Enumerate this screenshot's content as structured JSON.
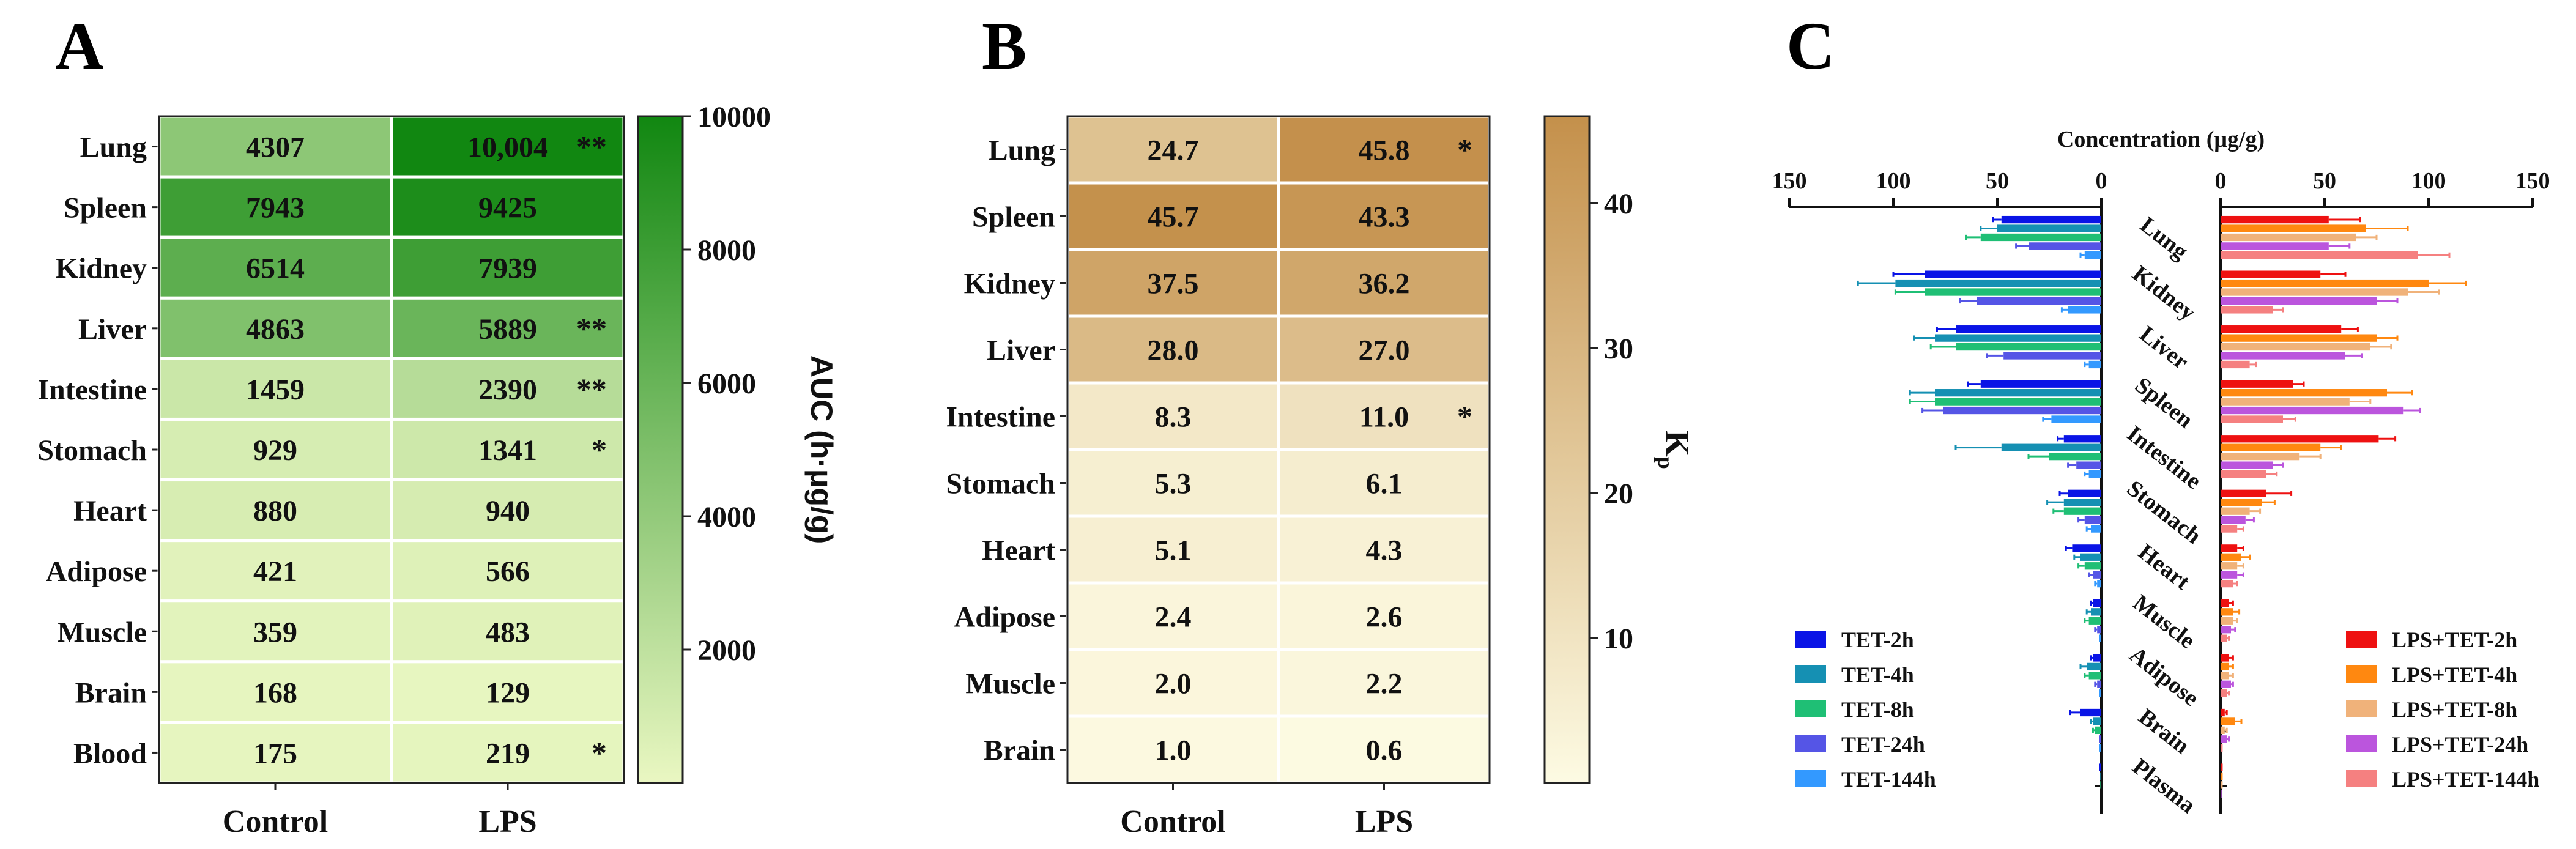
{
  "panels": {
    "a": "A",
    "b": "B",
    "c": "C"
  },
  "chart_data": [
    {
      "type": "heatmap",
      "panel": "A",
      "rows": [
        "Lung",
        "Spleen",
        "Kidney",
        "Liver",
        "Intestine",
        "Stomach",
        "Heart",
        "Adipose",
        "Muscle",
        "Brain",
        "Blood"
      ],
      "columns": [
        "Control",
        "LPS"
      ],
      "values": [
        [
          4307,
          10004
        ],
        [
          7943,
          9425
        ],
        [
          6514,
          7939
        ],
        [
          4863,
          5889
        ],
        [
          1459,
          2390
        ],
        [
          929,
          1341
        ],
        [
          880,
          940
        ],
        [
          421,
          566
        ],
        [
          359,
          483
        ],
        [
          168,
          129
        ],
        [
          175,
          219
        ]
      ],
      "labels": [
        [
          "4307",
          "10,004"
        ],
        [
          "7943",
          "9425"
        ],
        [
          "6514",
          "7939"
        ],
        [
          "4863",
          "5889"
        ],
        [
          "1459",
          "2390"
        ],
        [
          "929",
          "1341"
        ],
        [
          "880",
          "940"
        ],
        [
          "421",
          "566"
        ],
        [
          "359",
          "483"
        ],
        [
          "168",
          "129"
        ],
        [
          "175",
          "219"
        ]
      ],
      "significance": [
        "**",
        "",
        "",
        "**",
        "**",
        "*",
        "",
        "",
        "",
        "",
        "*"
      ],
      "colorbar": {
        "label": "AUC (h·μg/g)",
        "min": 0,
        "max": 10000,
        "ticks": [
          2000,
          4000,
          6000,
          8000,
          10000
        ],
        "tick_labels": [
          "2000",
          "4000",
          "6000",
          "8000",
          "10000"
        ],
        "color_low": "#eaf7c2",
        "color_high": "#118711"
      }
    },
    {
      "type": "heatmap",
      "panel": "B",
      "rows": [
        "Lung",
        "Spleen",
        "Kidney",
        "Liver",
        "Intestine",
        "Stomach",
        "Heart",
        "Adipose",
        "Muscle",
        "Brain"
      ],
      "columns": [
        "Control",
        "LPS"
      ],
      "values": [
        [
          24.7,
          45.8
        ],
        [
          45.7,
          43.3
        ],
        [
          37.5,
          36.2
        ],
        [
          28.0,
          27.0
        ],
        [
          8.3,
          11.0
        ],
        [
          5.3,
          6.1
        ],
        [
          5.1,
          4.3
        ],
        [
          2.4,
          2.6
        ],
        [
          2.0,
          2.2
        ],
        [
          1.0,
          0.6
        ]
      ],
      "labels": [
        [
          "24.7",
          "45.8"
        ],
        [
          "45.7",
          "43.3"
        ],
        [
          "37.5",
          "36.2"
        ],
        [
          "28.0",
          "27.0"
        ],
        [
          "8.3",
          "11.0"
        ],
        [
          "5.3",
          "6.1"
        ],
        [
          "5.1",
          "4.3"
        ],
        [
          "2.4",
          "2.6"
        ],
        [
          "2.0",
          "2.2"
        ],
        [
          "1.0",
          "0.6"
        ]
      ],
      "significance": [
        "*",
        "",
        "",
        "",
        "*",
        "",
        "",
        "",
        "",
        ""
      ],
      "colorbar": {
        "label": "K",
        "label_sub": "p",
        "min": 0,
        "max": 46,
        "ticks": [
          10,
          20,
          30,
          40
        ],
        "tick_labels": [
          "10",
          "20",
          "30",
          "40"
        ],
        "color_low": "#fdfbe3",
        "color_high": "#c4904b"
      }
    },
    {
      "type": "bar",
      "panel": "C",
      "orientation": "horizontal-butterfly",
      "title": "Concentration (μg/g)",
      "categories": [
        "Lung",
        "Kidney",
        "Liver",
        "Spleen",
        "Intestine",
        "Stomach",
        "Heart",
        "Muscle",
        "Adipose",
        "Brain",
        "Plasma"
      ],
      "xlim": [
        0,
        150
      ],
      "ticks": [
        0,
        50,
        100,
        150
      ],
      "tick_labels": [
        "0",
        "50",
        "100",
        "150"
      ],
      "left_series": [
        {
          "name": "TET-2h",
          "color": "#0a14e6",
          "values": [
            48,
            85,
            70,
            58,
            18,
            16,
            14,
            4,
            4,
            10,
            1
          ],
          "errors": [
            4,
            15,
            9,
            6,
            3,
            4,
            3,
            1,
            1,
            5,
            0
          ]
        },
        {
          "name": "TET-4h",
          "color": "#1590b3",
          "values": [
            50,
            99,
            80,
            80,
            48,
            18,
            10,
            5,
            7,
            4,
            0.5
          ],
          "errors": [
            8,
            18,
            10,
            12,
            22,
            8,
            3,
            2,
            3,
            1,
            0
          ]
        },
        {
          "name": "TET-8h",
          "color": "#1fbf75",
          "values": [
            58,
            85,
            70,
            80,
            25,
            18,
            8,
            6,
            6,
            3,
            0.5
          ],
          "errors": [
            7,
            14,
            12,
            12,
            10,
            5,
            3,
            2,
            2,
            1,
            0
          ]
        },
        {
          "name": "TET-24h",
          "color": "#5555e6",
          "values": [
            35,
            60,
            47,
            76,
            12,
            8,
            4,
            2,
            2,
            1,
            0.3
          ],
          "errors": [
            6,
            8,
            8,
            10,
            4,
            3,
            2,
            1,
            1,
            0,
            0
          ]
        },
        {
          "name": "TET-144h",
          "color": "#3399ff",
          "values": [
            8,
            16,
            6,
            24,
            6,
            5,
            2,
            1,
            1,
            1,
            0.2
          ],
          "errors": [
            2,
            3,
            2,
            4,
            2,
            2,
            1,
            0,
            0,
            0,
            0
          ]
        }
      ],
      "right_series": [
        {
          "name": "LPS+TET-2h",
          "color": "#ee1111",
          "values": [
            52,
            48,
            58,
            35,
            76,
            22,
            8,
            4,
            4,
            2,
            1
          ],
          "errors": [
            15,
            12,
            8,
            5,
            8,
            12,
            3,
            2,
            2,
            1,
            0
          ]
        },
        {
          "name": "LPS+TET-4h",
          "color": "#ff8810",
          "values": [
            70,
            100,
            75,
            80,
            48,
            20,
            10,
            6,
            4,
            7,
            1
          ],
          "errors": [
            20,
            18,
            10,
            12,
            10,
            6,
            4,
            3,
            2,
            3,
            0
          ]
        },
        {
          "name": "LPS+TET-8h",
          "color": "#f0b27a",
          "values": [
            65,
            90,
            72,
            62,
            38,
            14,
            8,
            6,
            4,
            2,
            1
          ],
          "errors": [
            10,
            15,
            10,
            10,
            10,
            5,
            3,
            2,
            2,
            1,
            0
          ]
        },
        {
          "name": "LPS+TET-24h",
          "color": "#bb55dd",
          "values": [
            52,
            75,
            60,
            88,
            25,
            12,
            8,
            5,
            5,
            3,
            0.5
          ],
          "errors": [
            10,
            10,
            8,
            8,
            5,
            4,
            3,
            2,
            1,
            1,
            0
          ]
        },
        {
          "name": "LPS+TET-144h",
          "color": "#f58080",
          "values": [
            95,
            25,
            14,
            30,
            22,
            8,
            6,
            3,
            3,
            1,
            0.3
          ],
          "errors": [
            15,
            5,
            3,
            6,
            5,
            3,
            2,
            1,
            1,
            0,
            0
          ]
        }
      ]
    }
  ]
}
